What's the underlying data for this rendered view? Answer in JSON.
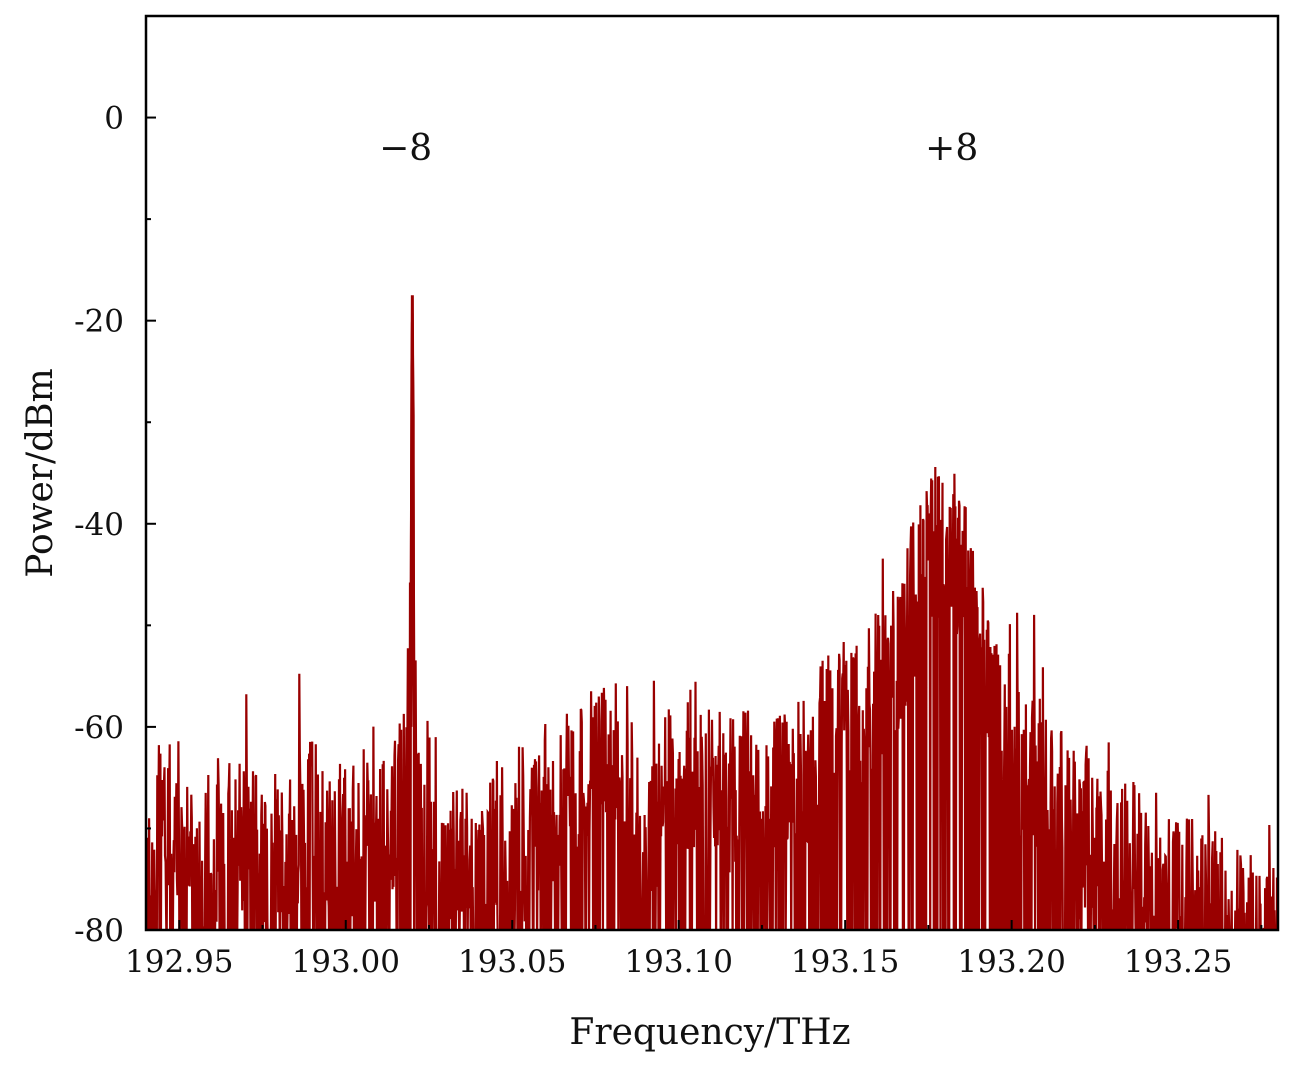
{
  "chart_data": {
    "type": "line",
    "title": "",
    "xlabel": "Frequency/THz",
    "ylabel": "Power/dBm",
    "xlim": [
      192.94,
      193.28
    ],
    "ylim": [
      -80,
      10
    ],
    "grid": false,
    "legend": "none",
    "line_color": "#990000",
    "x_ticks": [
      {
        "value": 192.95,
        "label": "192.95"
      },
      {
        "value": 193.0,
        "label": "193.00"
      },
      {
        "value": 193.05,
        "label": "193.05"
      },
      {
        "value": 193.1,
        "label": "193.10"
      },
      {
        "value": 193.15,
        "label": "193.15"
      },
      {
        "value": 193.2,
        "label": "193.20"
      },
      {
        "value": 193.25,
        "label": "193.25"
      }
    ],
    "y_ticks": [
      {
        "value": 0,
        "label": "0"
      },
      {
        "value": -20,
        "label": "-20"
      },
      {
        "value": -40,
        "label": "-40"
      },
      {
        "value": -60,
        "label": "-60"
      },
      {
        "value": -80,
        "label": "-80"
      }
    ],
    "annotations": [
      {
        "text": "−8",
        "x": 193.018,
        "y": -3
      },
      {
        "text": "+8",
        "x": 193.182,
        "y": -3
      }
    ],
    "series": [
      {
        "x": [
          192.94,
          192.945,
          192.95,
          192.955,
          192.96,
          192.965,
          192.97,
          192.975,
          192.98,
          192.985,
          192.99,
          192.995,
          193.0,
          193.005,
          193.01,
          193.015,
          193.018,
          193.019,
          193.02,
          193.021,
          193.022,
          193.025,
          193.03,
          193.035,
          193.04,
          193.045,
          193.05,
          193.055,
          193.06,
          193.065,
          193.07,
          193.075,
          193.08,
          193.085,
          193.09,
          193.095,
          193.1,
          193.105,
          193.11,
          193.115,
          193.12,
          193.125,
          193.13,
          193.135,
          193.14,
          193.145,
          193.15,
          193.155,
          193.16,
          193.165,
          193.17,
          193.175,
          193.18,
          193.185,
          193.19,
          193.195,
          193.2,
          193.205,
          193.21,
          193.215,
          193.22,
          193.225,
          193.23,
          193.235,
          193.24,
          193.245,
          193.25,
          193.255,
          193.26,
          193.265,
          193.27,
          193.275,
          193.28
        ],
        "y": [
          -66,
          -62,
          -64,
          -67,
          -63,
          -65,
          -62,
          -66,
          -64,
          -63,
          -61,
          -62,
          -64,
          -62,
          -63,
          -60,
          -58,
          -45,
          -17.5,
          -50,
          -60,
          -66,
          -68,
          -65,
          -64,
          -63,
          -65,
          -64,
          -61,
          -59,
          -57,
          -56,
          -54,
          -55,
          -67,
          -58,
          -57,
          -56,
          -57,
          -59,
          -58,
          -60,
          -59,
          -57,
          -55,
          -52,
          -51,
          -50,
          -47,
          -46,
          -40,
          -34,
          -33,
          -36,
          -45,
          -50,
          -57,
          -55,
          -58,
          -60,
          -63,
          -62,
          -65,
          -64,
          -67,
          -66,
          -69,
          -68,
          -70,
          -71,
          -72,
          -73,
          -74
        ]
      }
    ]
  }
}
